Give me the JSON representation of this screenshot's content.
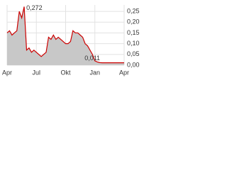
{
  "chart_data": {
    "type": "area",
    "categories": [
      "Apr",
      null,
      null,
      null,
      null,
      null,
      null,
      null,
      null,
      null,
      null,
      null,
      "Jul",
      null,
      null,
      null,
      null,
      null,
      null,
      null,
      null,
      null,
      null,
      null,
      "Okt",
      null,
      null,
      null,
      null,
      null,
      null,
      null,
      null,
      null,
      null,
      null,
      "Jan",
      null,
      null,
      null,
      null,
      null,
      null,
      null,
      null,
      null,
      null,
      null,
      "Apr"
    ],
    "series": [
      {
        "color": "#cc0000",
        "fill": "#c8c8c8",
        "values": [
          0.15,
          0.16,
          0.14,
          0.15,
          0.16,
          0.25,
          0.22,
          0.272,
          0.07,
          0.08,
          0.06,
          0.07,
          0.06,
          0.05,
          0.04,
          0.05,
          0.06,
          0.13,
          0.12,
          0.14,
          0.12,
          0.13,
          0.12,
          0.11,
          0.1,
          0.1,
          0.11,
          0.16,
          0.15,
          0.15,
          0.14,
          0.13,
          0.1,
          0.09,
          0.07,
          0.05,
          0.02,
          0.015,
          0.012,
          0.011,
          0.011,
          0.011,
          0.011,
          0.011,
          0.011,
          0.011,
          0.011,
          0.011,
          0.011
        ],
        "value_labels": [
          null,
          null,
          null,
          null,
          null,
          null,
          null,
          "0,272",
          null,
          null,
          null,
          null,
          null,
          null,
          null,
          null,
          null,
          null,
          null,
          null,
          null,
          null,
          null,
          null,
          null,
          null,
          null,
          null,
          null,
          null,
          null,
          null,
          null,
          null,
          null,
          null,
          null,
          null,
          null,
          "0,011",
          null,
          null,
          null,
          null,
          null,
          null,
          null,
          null,
          null
        ]
      }
    ],
    "ylim": [
      0,
      0.28
    ],
    "yticks": [
      {
        "value": 0,
        "label": "0,00"
      },
      {
        "value": 0.05,
        "label": "0,05"
      },
      {
        "value": 0.1,
        "label": "0,10"
      },
      {
        "value": 0.15,
        "label": "0,15"
      },
      {
        "value": 0.2,
        "label": "0,20"
      },
      {
        "value": 0.25,
        "label": "0,25"
      }
    ],
    "grid": true
  }
}
